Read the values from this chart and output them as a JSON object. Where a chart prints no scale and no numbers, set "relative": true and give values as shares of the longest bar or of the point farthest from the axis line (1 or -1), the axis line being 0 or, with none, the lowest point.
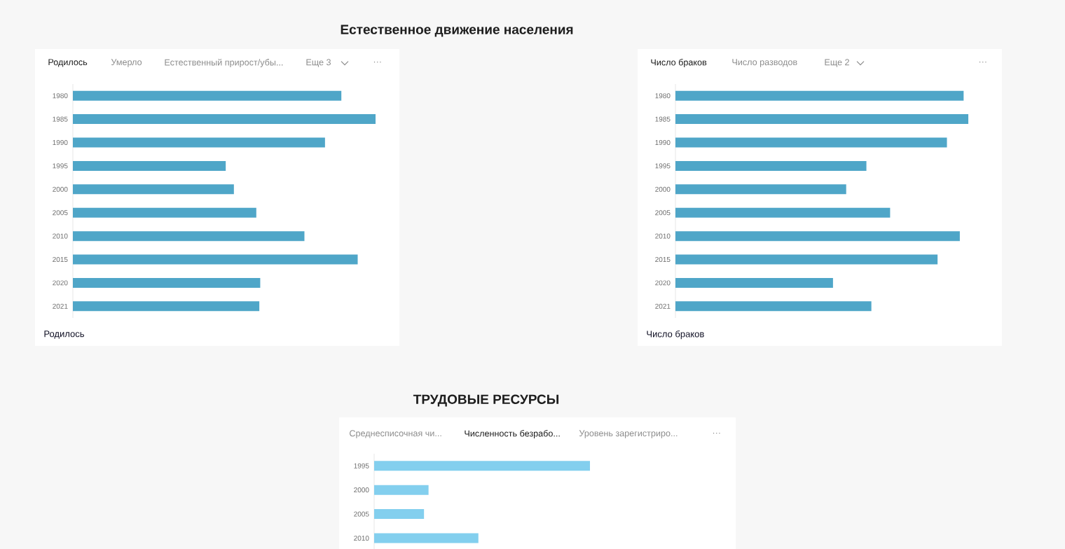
{
  "chart_data": [
    {
      "type": "bar",
      "orientation": "horizontal",
      "relative": true,
      "title": "Естественное движение населения",
      "annotations": [
        "Родилось",
        "Умерло",
        "Естественный прирост/убы...",
        "Еще 3",
        "···"
      ],
      "xlabel": "Родилось",
      "categories": [
        "1980",
        "1985",
        "1990",
        "1995",
        "2000",
        "2005",
        "2010",
        "2015",
        "2020",
        "2021"
      ],
      "values": [
        0.887,
        1,
        0.833,
        0.505,
        0.532,
        0.606,
        0.765,
        0.941,
        0.619,
        0.616
      ],
      "color": "#4fa6c8"
    },
    {
      "type": "bar",
      "orientation": "horizontal",
      "relative": true,
      "annotations": [
        "Число браков",
        "Число разводов",
        "Еще 2",
        "···"
      ],
      "xlabel": "Число браков",
      "categories": [
        "1980",
        "1985",
        "1990",
        "1995",
        "2000",
        "2005",
        "2010",
        "2015",
        "2020",
        "2021"
      ],
      "values": [
        0.984,
        1,
        0.927,
        0.652,
        0.583,
        0.733,
        0.971,
        0.895,
        0.538,
        0.669
      ],
      "color": "#4fa6c8"
    },
    {
      "type": "bar",
      "orientation": "horizontal",
      "relative": true,
      "title": "ТРУДОВЫЕ РЕСУРСЫ",
      "annotations": [
        "Среднесписочная чи...",
        "Численность безрабо...",
        "Уровень зарегистриро...",
        "···"
      ],
      "categories": [
        "1995",
        "2000",
        "2005",
        "2010"
      ],
      "values": [
        1,
        0.252,
        0.231,
        0.483
      ],
      "color": "#83cfee"
    }
  ]
}
